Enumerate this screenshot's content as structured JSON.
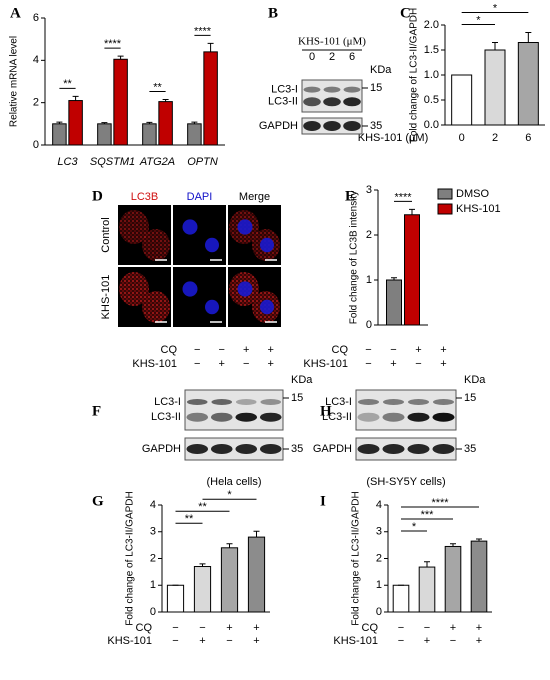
{
  "chart_data": [
    {
      "label": "A",
      "type": "bar",
      "ylabel": "Relative mRNA level",
      "categories": [
        "LC3",
        "SQSTM1",
        "ATG2A",
        "OPTN"
      ],
      "series": [
        {
          "color": "#7f7f7f",
          "values": [
            1,
            1,
            1,
            1
          ],
          "errors": [
            0.08,
            0.06,
            0.07,
            0.08
          ]
        },
        {
          "color": "#c00000",
          "values": [
            2.1,
            4.05,
            2.05,
            4.4
          ],
          "errors": [
            0.2,
            0.15,
            0.1,
            0.4
          ]
        }
      ],
      "sig_labels": [
        "**",
        "****",
        "**",
        "****"
      ],
      "ylim": [
        0,
        6
      ],
      "yticks": [
        0,
        2,
        4,
        6
      ]
    },
    {
      "label": "C",
      "type": "bar",
      "ylabel": "Fold change of LC3-II/GAPDH",
      "xlabel": "KHS-101 (μM)",
      "categories": [
        "0",
        "2",
        "6"
      ],
      "values": [
        1,
        1.5,
        1.65
      ],
      "errors": [
        0,
        0.15,
        0.2
      ],
      "colors": [
        "#ffffff",
        "#d9d9d9",
        "#a6a6a6"
      ],
      "comparisons": [
        {
          "pair": [
            0,
            1
          ],
          "label": "*"
        },
        {
          "pair": [
            0,
            2
          ],
          "label": "*"
        }
      ],
      "ylim": [
        0,
        2
      ],
      "yticks": [
        {
          "value": 0,
          "label": "0.0"
        },
        {
          "value": 0.5,
          "label": "0.5"
        },
        {
          "value": 1,
          "label": "1.0"
        },
        {
          "value": 1.5,
          "label": "1.5"
        },
        {
          "value": 2,
          "label": "2.0"
        }
      ]
    },
    {
      "label": "E",
      "type": "bar",
      "ylabel": "Fold change of LC3B intensity",
      "legend": "top-right",
      "series": [
        {
          "name": "DMSO",
          "color": "#7f7f7f",
          "values": [
            1
          ],
          "errors": [
            0.05
          ]
        },
        {
          "name": "KHS-101",
          "color": "#c00000",
          "values": [
            2.45
          ],
          "errors": [
            0.12
          ]
        }
      ],
      "sig_labels": [
        "****"
      ],
      "ylim": [
        0,
        3
      ],
      "yticks": [
        0,
        1,
        2,
        3
      ]
    },
    {
      "label": "G",
      "type": "bar",
      "ylabel": "Fold change of LC3-II/GAPDH",
      "conditions": [
        {
          "name": "CQ",
          "signs": [
            "−",
            "−",
            "+",
            "+"
          ]
        },
        {
          "name": "KHS-101",
          "signs": [
            "−",
            "+",
            "−",
            "+"
          ]
        }
      ],
      "values": [
        1,
        1.7,
        2.4,
        2.8
      ],
      "errors": [
        0,
        0.1,
        0.15,
        0.22
      ],
      "colors": [
        "#ffffff",
        "#d9d9d9",
        "#a6a6a6",
        "#8c8c8c"
      ],
      "comparisons": [
        {
          "pair": [
            0,
            1
          ],
          "label": "**"
        },
        {
          "pair": [
            0,
            2
          ],
          "label": "**"
        },
        {
          "pair": [
            1,
            3
          ],
          "label": "*"
        }
      ],
      "ylim": [
        0,
        4
      ],
      "yticks": [
        0,
        1,
        2,
        3,
        4
      ]
    },
    {
      "label": "I",
      "type": "bar",
      "ylabel": "Fold change of LC3-II/GAPDH",
      "conditions": [
        {
          "name": "CQ",
          "signs": [
            "−",
            "−",
            "+",
            "+"
          ]
        },
        {
          "name": "KHS-101",
          "signs": [
            "−",
            "+",
            "−",
            "+"
          ]
        }
      ],
      "values": [
        1,
        1.68,
        2.45,
        2.65
      ],
      "errors": [
        0,
        0.2,
        0.1,
        0.08
      ],
      "colors": [
        "#ffffff",
        "#d9d9d9",
        "#a6a6a6",
        "#8c8c8c"
      ],
      "comparisons": [
        {
          "pair": [
            0,
            1
          ],
          "label": "*"
        },
        {
          "pair": [
            0,
            2
          ],
          "label": "***"
        },
        {
          "pair": [
            0,
            3
          ],
          "label": "****"
        }
      ],
      "ylim": [
        0,
        4
      ],
      "yticks": [
        0,
        1,
        2,
        3,
        4
      ]
    }
  ],
  "blots": [
    {
      "label": "B",
      "header": "KHS-101 (μM)",
      "lanes": [
        "0",
        "2",
        "6"
      ],
      "kda": "KDa",
      "bands": [
        "LC3-I",
        "LC3-II",
        "GAPDH"
      ],
      "markers": [
        "15",
        "35"
      ]
    },
    {
      "label": "F",
      "conditions": [
        {
          "name": "CQ",
          "signs": [
            "−",
            "−",
            "+",
            "+"
          ]
        },
        {
          "name": "KHS-101",
          "signs": [
            "−",
            "+",
            "−",
            "+"
          ]
        }
      ],
      "kda": "KDa",
      "bands": [
        "LC3-I",
        "LC3-II",
        "GAPDH"
      ],
      "markers": [
        "15",
        "35"
      ],
      "caption": "(Hela cells)"
    },
    {
      "label": "H",
      "conditions": [
        {
          "name": "CQ",
          "signs": [
            "−",
            "−",
            "+",
            "+"
          ]
        },
        {
          "name": "KHS-101",
          "signs": [
            "−",
            "+",
            "−",
            "+"
          ]
        }
      ],
      "kda": "KDa",
      "bands": [
        "LC3-I",
        "LC3-II",
        "GAPDH"
      ],
      "markers": [
        "15",
        "35"
      ],
      "caption": "(SH-SY5Y cells)"
    }
  ],
  "microscopy": {
    "label": "D",
    "columns": [
      "LC3B",
      "DAPI",
      "Merge"
    ],
    "rows": [
      "Control",
      "KHS-101"
    ]
  }
}
